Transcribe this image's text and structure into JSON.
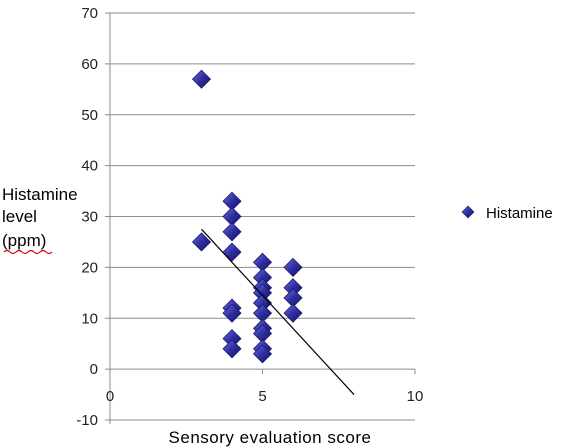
{
  "chart_data": {
    "type": "scatter",
    "title": "",
    "xlabel": "Sensory evaluation score",
    "ylabel_lines": [
      "Histamine",
      "level",
      "(ppm)"
    ],
    "xlim": [
      0,
      10
    ],
    "ylim": [
      -10,
      70
    ],
    "x_ticks": [
      "0",
      "5",
      "10"
    ],
    "y_ticks": [
      "-10",
      "0",
      "10",
      "20",
      "30",
      "40",
      "50",
      "60",
      "70"
    ],
    "grid": "horizontal",
    "legend_position": "right",
    "series": [
      {
        "name": "Histamine",
        "color": "#2e2ea0",
        "marker": "diamond",
        "x": [
          3,
          3,
          4,
          4,
          4,
          4,
          4,
          4,
          4,
          4,
          5,
          5,
          5,
          5,
          5,
          5,
          5,
          5,
          5,
          5,
          6,
          6,
          6,
          6
        ],
        "y": [
          57,
          25,
          33,
          30,
          27,
          23,
          12,
          11,
          6,
          4,
          21,
          18,
          16,
          15,
          13,
          11,
          8,
          7,
          4,
          3,
          20,
          16,
          14,
          11
        ]
      }
    ],
    "trendline": {
      "x": [
        3,
        8
      ],
      "y": [
        27.5,
        -5
      ],
      "color": "#000000"
    }
  }
}
